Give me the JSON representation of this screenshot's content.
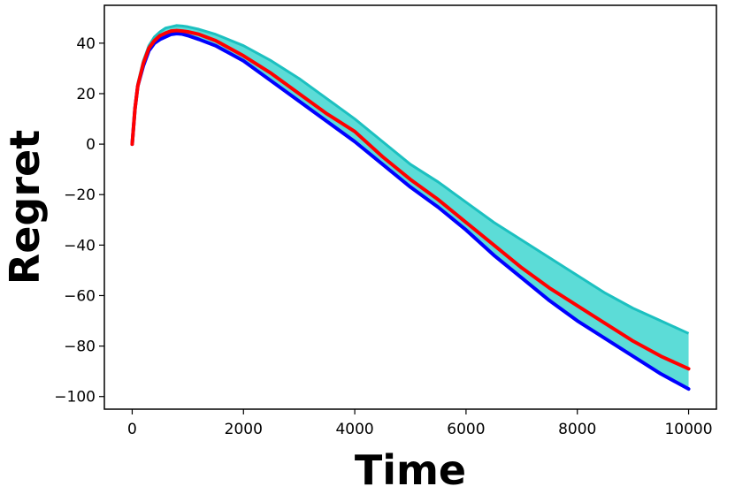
{
  "chart_data": {
    "type": "line",
    "title": "",
    "xlabel": "Time",
    "ylabel": "Regret",
    "xlim": [
      -500,
      10500
    ],
    "ylim": [
      -105,
      55
    ],
    "x_ticks": [
      0,
      2000,
      4000,
      6000,
      8000,
      10000
    ],
    "x_tick_labels": [
      "0",
      "2000",
      "4000",
      "6000",
      "8000",
      "10000"
    ],
    "y_ticks": [
      40,
      20,
      0,
      -20,
      -40,
      -60,
      -80,
      -100
    ],
    "y_tick_labels": [
      "40",
      "20",
      "0",
      "−20",
      "−40",
      "−60",
      "−80",
      "−100"
    ],
    "grid": false,
    "legend": null,
    "series": [
      {
        "color": "#ff0000",
        "x": [
          0,
          50,
          100,
          200,
          300,
          400,
          500,
          600,
          700,
          800,
          900,
          1000,
          1200,
          1500,
          2000,
          2500,
          3000,
          3500,
          4000,
          4500,
          5000,
          5500,
          6000,
          6500,
          7000,
          7500,
          8000,
          8500,
          9000,
          9500,
          10000
        ],
        "y": [
          0,
          14,
          23,
          32,
          38,
          41,
          43,
          44,
          44.8,
          45,
          44.8,
          44.5,
          43.5,
          41,
          35,
          28,
          20,
          12,
          5,
          -5,
          -14,
          -22,
          -31,
          -40,
          -49,
          -57,
          -64,
          -71,
          -78,
          -84,
          -89
        ]
      },
      {
        "color": "#0000ff",
        "x": [
          0,
          50,
          100,
          200,
          300,
          400,
          500,
          600,
          700,
          800,
          900,
          1000,
          1200,
          1500,
          2000,
          2500,
          3000,
          3500,
          4000,
          4500,
          5000,
          5500,
          6000,
          6500,
          7000,
          7500,
          8000,
          8500,
          9000,
          9500,
          10000
        ],
        "y": [
          0,
          14,
          23,
          31,
          37,
          40,
          41.5,
          42.5,
          43.5,
          43.8,
          43.6,
          43,
          41.5,
          39,
          33,
          25,
          17,
          9,
          1,
          -8,
          -17,
          -25,
          -34,
          -44,
          -53,
          -62,
          -70,
          -77,
          -84,
          -91,
          -97
        ]
      }
    ],
    "band": {
      "color": "#3fd6d0",
      "edge_color": "#1cc0c0",
      "x": [
        0,
        50,
        100,
        200,
        300,
        400,
        500,
        600,
        700,
        800,
        900,
        1000,
        1200,
        1500,
        2000,
        2500,
        3000,
        3500,
        4000,
        4500,
        5000,
        5500,
        6000,
        6500,
        7000,
        7500,
        8000,
        8500,
        9000,
        9500,
        10000
      ],
      "upper": [
        0,
        15,
        24,
        33,
        39,
        42.5,
        44.5,
        46,
        46.5,
        47,
        46.8,
        46.5,
        45.5,
        43.5,
        39,
        33,
        26,
        18,
        10,
        1,
        -8,
        -15,
        -23,
        -31,
        -38,
        -45,
        -52,
        -59,
        -65,
        -70,
        -75
      ],
      "lower": [
        0,
        14,
        23,
        31,
        37,
        40,
        41.5,
        42.5,
        43.5,
        43.8,
        43.6,
        43,
        41.5,
        39,
        33,
        25,
        17,
        9,
        1,
        -8,
        -17,
        -25,
        -34,
        -44,
        -53,
        -62,
        -70,
        -77,
        -84,
        -91,
        -97
      ]
    }
  }
}
